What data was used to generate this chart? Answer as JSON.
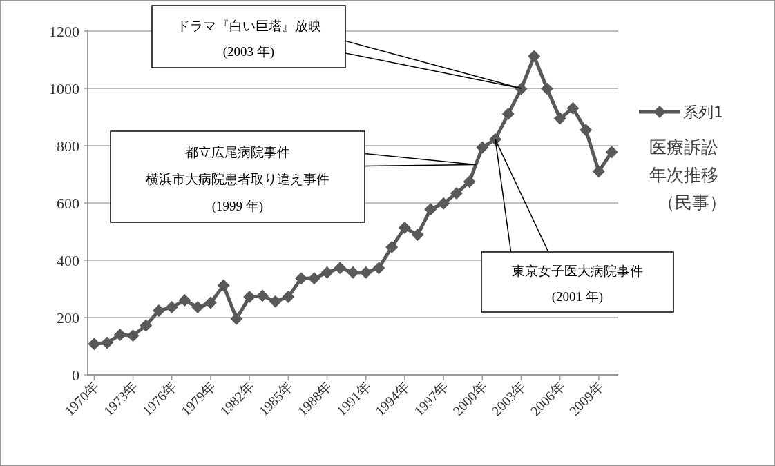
{
  "chart_data": {
    "type": "line",
    "x": [
      1970,
      1971,
      1972,
      1973,
      1974,
      1975,
      1976,
      1977,
      1978,
      1979,
      1980,
      1981,
      1982,
      1983,
      1984,
      1985,
      1986,
      1987,
      1988,
      1989,
      1990,
      1991,
      1992,
      1993,
      1994,
      1995,
      1996,
      1997,
      1998,
      1999,
      2000,
      2001,
      2002,
      2003,
      2004,
      2005,
      2006,
      2007,
      2008,
      2009,
      2010
    ],
    "series": [
      {
        "name": "系列1",
        "color": "#595959",
        "values": [
          108,
          112,
          140,
          137,
          172,
          224,
          236,
          260,
          236,
          252,
          312,
          196,
          272,
          276,
          256,
          272,
          337,
          337,
          357,
          373,
          357,
          357,
          373,
          446,
          513,
          489,
          578,
          598,
          634,
          674,
          794,
          822,
          911,
          998,
          1112,
          999,
          895,
          931,
          855,
          710,
          778
        ]
      }
    ],
    "xlim": [
      1969.5,
      2010.5
    ],
    "xticks": [
      {
        "value": 1970,
        "label": "1970年"
      },
      {
        "value": 1973,
        "label": "1973年"
      },
      {
        "value": 1976,
        "label": "1976年"
      },
      {
        "value": 1979,
        "label": "1979年"
      },
      {
        "value": 1982,
        "label": "1982年"
      },
      {
        "value": 1985,
        "label": "1985年"
      },
      {
        "value": 1988,
        "label": "1988年"
      },
      {
        "value": 1991,
        "label": "1991年"
      },
      {
        "value": 1994,
        "label": "1994年"
      },
      {
        "value": 1997,
        "label": "1997年"
      },
      {
        "value": 2000,
        "label": "2000年"
      },
      {
        "value": 2003,
        "label": "2003年"
      },
      {
        "value": 2006,
        "label": "2006年"
      },
      {
        "value": 2009,
        "label": "2009年"
      }
    ],
    "ylim": [
      0,
      1200
    ],
    "yticks": [
      0,
      200,
      400,
      600,
      800,
      1000,
      1200
    ],
    "grid": "y",
    "legend": "right",
    "marker": "diamond",
    "line_style": "solid",
    "annotations": [
      {
        "text": "ドラマ『白い巨塔』放映",
        "x": 2003,
        "y": 1000
      },
      "(2003 年)",
      {
        "text": "都立広尾病院事件",
        "x": 1999.5,
        "y": 734
      },
      "横浜市大病院患者取り違え事件",
      "(1999 年)",
      {
        "text": "東京女子医大病院事件",
        "x": 2001,
        "y": 822
      },
      "(2001 年)",
      "医療訴訟",
      "年次推移",
      "（民事）"
    ]
  }
}
